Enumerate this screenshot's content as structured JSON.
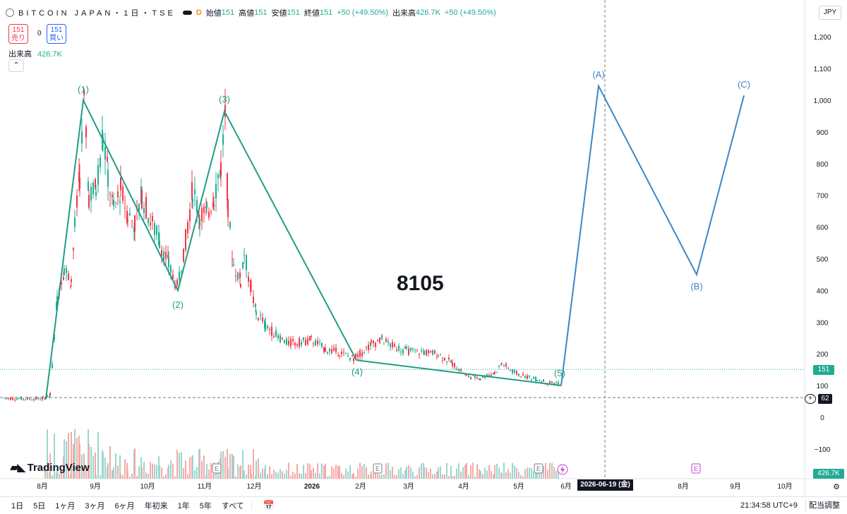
{
  "header": {
    "symbol": "BITCOIN JAPAN・1日・TSE",
    "open_label": "始値",
    "open": "151",
    "high_label": "高値",
    "high": "151",
    "low_label": "安値",
    "low": "151",
    "close_label": "終値",
    "close": "151",
    "change": "+50 (+49.50%)",
    "volume_label": "出来高",
    "volume": "426.7K",
    "volume_change": "+50 (+49.50%)",
    "d_badge": "D"
  },
  "trade": {
    "sell_price": "151",
    "sell_label": "売り",
    "buy_price": "151",
    "buy_label": "買い",
    "spread": "0"
  },
  "volume_row": {
    "label": "出来高",
    "value": "426.7K"
  },
  "currency": "JPY",
  "center_label": "8105",
  "logo": "TradingView",
  "price_tag": "151",
  "cross_tag": "62",
  "volume_tag": "426.7K",
  "date_tag": "2026-06-19 (金)",
  "toolbar": {
    "timeframes": [
      "1日",
      "5日",
      "1ヶ月",
      "3ヶ月",
      "6ヶ月",
      "年初来",
      "1年",
      "5年",
      "すべて"
    ],
    "clock": "21:34:58 UTC+9",
    "adjust": "配当調整"
  },
  "chart_data": {
    "type": "candlestick",
    "y_axis": {
      "ticks": [
        1200,
        1100,
        1000,
        900,
        800,
        700,
        600,
        500,
        400,
        300,
        200,
        100,
        0,
        -100
      ],
      "labels": [
        "1,200",
        "1,100",
        "1,000",
        "900",
        "800",
        "700",
        "600",
        "500",
        "400",
        "300",
        "200",
        "100",
        "0",
        "−100"
      ]
    },
    "x_axis": {
      "labels": [
        "8月",
        "9月",
        "10月",
        "11月",
        "12月",
        "2026",
        "2月",
        "3月",
        "4月",
        "5月",
        "6月",
        "8月",
        "9月",
        "10月"
      ]
    },
    "price_line": 151,
    "crosshair_price": 62,
    "elliott_wave_labels": [
      {
        "label": "(1)",
        "price": 1005
      },
      {
        "label": "(2)",
        "price": 400
      },
      {
        "label": "(3)",
        "price": 970
      },
      {
        "label": "(4)",
        "price": 180
      },
      {
        "label": "(5)",
        "price": 100
      },
      {
        "label": "(A)",
        "price": 1045
      },
      {
        "label": "(B)",
        "price": 450
      },
      {
        "label": "(C)",
        "price": 1015
      }
    ],
    "event_markers": [
      "E",
      "E",
      "E",
      "E"
    ]
  }
}
